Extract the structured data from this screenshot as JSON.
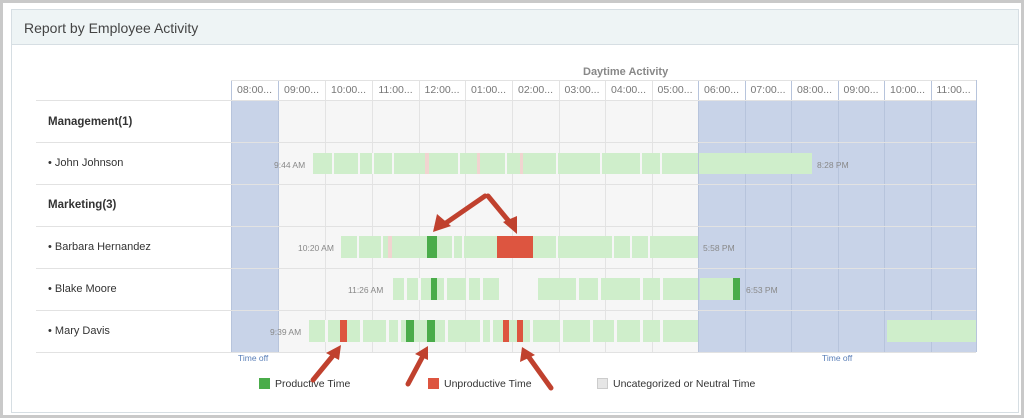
{
  "panel": {
    "title": "Report by Employee Activity"
  },
  "chart": {
    "daytime_title": "Daytime Activity",
    "columns": [
      "08:00...",
      "09:00...",
      "10:00...",
      "11:00...",
      "12:00...",
      "01:00...",
      "02:00...",
      "03:00...",
      "04:00...",
      "05:00...",
      "06:00...",
      "07:00...",
      "08:00...",
      "09:00...",
      "10:00...",
      "11:00..."
    ],
    "time_off_label": "Time off"
  },
  "rows": [
    {
      "type": "group",
      "label": "Management(1)"
    },
    {
      "type": "person",
      "label": "John Johnson",
      "start": "9:44 AM",
      "end": "8:28 PM"
    },
    {
      "type": "group",
      "label": "Marketing(3)"
    },
    {
      "type": "person",
      "label": "Barbara Hernandez",
      "start": "10:20 AM",
      "end": "5:58 PM"
    },
    {
      "type": "person",
      "label": "Blake Moore",
      "start": "11:26 AM",
      "end": "6:53 PM"
    },
    {
      "type": "person",
      "label": "Mary Davis",
      "start": "9:39 AM",
      "end": ""
    }
  ],
  "legend": {
    "productive": "Productive Time",
    "unproductive": "Unproductive Time",
    "neutral": "Uncategorized or Neutral Time"
  },
  "colors": {
    "productive": "#4aac4a",
    "unproductive": "#dd5540",
    "neutral": "#cfeecb",
    "time_off": "#c8d3e8",
    "arrow": "#c0412e"
  }
}
